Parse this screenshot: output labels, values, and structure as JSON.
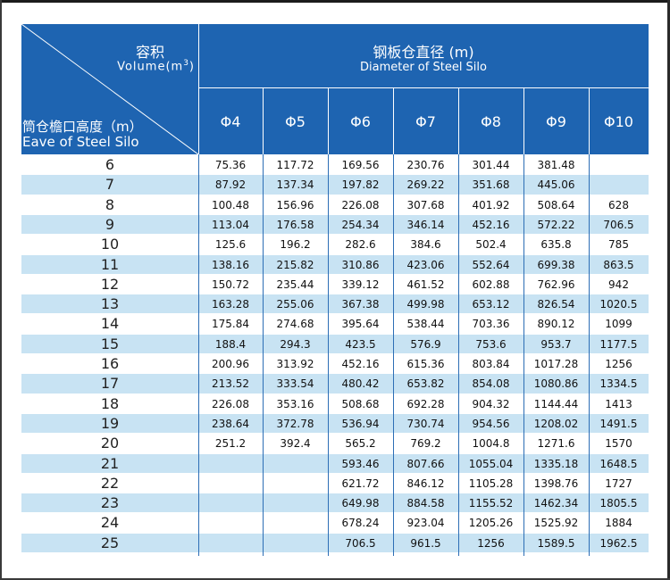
{
  "header": {
    "volume_cn": "容积",
    "volume_en": "Volume(m",
    "volume_sup": "3",
    "volume_close": ")",
    "eave_cn": "筒仓檐口高度（m）",
    "eave_en": "Eave of Steel Silo",
    "diameter_cn": "钢板仓直径 (m)",
    "diameter_en": "Diameter of Steel Silo",
    "columns": [
      "Φ4",
      "Φ5",
      "Φ6",
      "Φ7",
      "Φ8",
      "Φ9",
      "Φ10"
    ]
  },
  "rows": [
    {
      "h": "6",
      "v": [
        "75.36",
        "117.72",
        "169.56",
        "230.76",
        "301.44",
        "381.48",
        ""
      ]
    },
    {
      "h": "7",
      "v": [
        "87.92",
        "137.34",
        "197.82",
        "269.22",
        "351.68",
        "445.06",
        ""
      ]
    },
    {
      "h": "8",
      "v": [
        "100.48",
        "156.96",
        "226.08",
        "307.68",
        "401.92",
        "508.64",
        "628"
      ]
    },
    {
      "h": "9",
      "v": [
        "113.04",
        "176.58",
        "254.34",
        "346.14",
        "452.16",
        "572.22",
        "706.5"
      ]
    },
    {
      "h": "10",
      "v": [
        "125.6",
        "196.2",
        "282.6",
        "384.6",
        "502.4",
        "635.8",
        "785"
      ]
    },
    {
      "h": "11",
      "v": [
        "138.16",
        "215.82",
        "310.86",
        "423.06",
        "552.64",
        "699.38",
        "863.5"
      ]
    },
    {
      "h": "12",
      "v": [
        "150.72",
        "235.44",
        "339.12",
        "461.52",
        "602.88",
        "762.96",
        "942"
      ]
    },
    {
      "h": "13",
      "v": [
        "163.28",
        "255.06",
        "367.38",
        "499.98",
        "653.12",
        "826.54",
        "1020.5"
      ]
    },
    {
      "h": "14",
      "v": [
        "175.84",
        "274.68",
        "395.64",
        "538.44",
        "703.36",
        "890.12",
        "1099"
      ]
    },
    {
      "h": "15",
      "v": [
        "188.4",
        "294.3",
        "423.5",
        "576.9",
        "753.6",
        "953.7",
        "1177.5"
      ]
    },
    {
      "h": "16",
      "v": [
        "200.96",
        "313.92",
        "452.16",
        "615.36",
        "803.84",
        "1017.28",
        "1256"
      ]
    },
    {
      "h": "17",
      "v": [
        "213.52",
        "333.54",
        "480.42",
        "653.82",
        "854.08",
        "1080.86",
        "1334.5"
      ]
    },
    {
      "h": "18",
      "v": [
        "226.08",
        "353.16",
        "508.68",
        "692.28",
        "904.32",
        "1144.44",
        "1413"
      ]
    },
    {
      "h": "19",
      "v": [
        "238.64",
        "372.78",
        "536.94",
        "730.74",
        "954.56",
        "1208.02",
        "1491.5"
      ]
    },
    {
      "h": "20",
      "v": [
        "251.2",
        "392.4",
        "565.2",
        "769.2",
        "1004.8",
        "1271.6",
        "1570"
      ]
    },
    {
      "h": "21",
      "v": [
        "",
        "",
        "593.46",
        "807.66",
        "1055.04",
        "1335.18",
        "1648.5"
      ]
    },
    {
      "h": "22",
      "v": [
        "",
        "",
        "621.72",
        "846.12",
        "1105.28",
        "1398.76",
        "1727"
      ]
    },
    {
      "h": "23",
      "v": [
        "",
        "",
        "649.98",
        "884.58",
        "1155.52",
        "1462.34",
        "1805.5"
      ]
    },
    {
      "h": "24",
      "v": [
        "",
        "",
        "678.24",
        "923.04",
        "1205.26",
        "1525.92",
        "1884"
      ]
    },
    {
      "h": "25",
      "v": [
        "",
        "",
        "706.5",
        "961.5",
        "1256",
        "1589.5",
        "1962.5"
      ]
    }
  ],
  "colors": {
    "header_bg": "#1e64b1",
    "row_alt_bg": "#c8e3f3",
    "row_bg": "#ffffff"
  }
}
